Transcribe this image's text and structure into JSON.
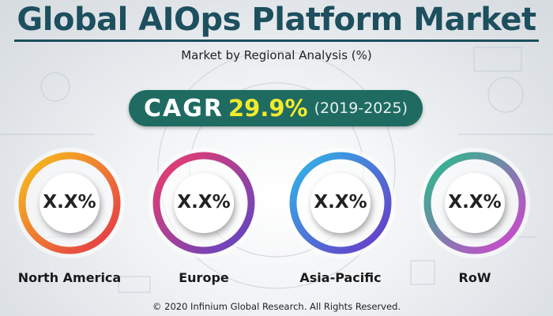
{
  "title": "Global AIOps Platform Market",
  "subtitle": "Market by Regional Analysis (%)",
  "cagr": {
    "label": "CAGR",
    "value": "29.9%",
    "period": "(2019-2025)"
  },
  "colors": {
    "title": "#1d4f5e",
    "pill": "#1f6b62",
    "cagr_value": "#f2ea2a"
  },
  "chart_data": {
    "type": "donut",
    "title": "Global AIOps Platform Market",
    "subtitle": "Market by Regional Analysis (%)",
    "regions": [
      {
        "name": "North America",
        "value": "X.X%",
        "gradient": [
          "#f7c21b",
          "#e4334a"
        ]
      },
      {
        "name": "Europe",
        "value": "X.X%",
        "gradient": [
          "#ef3b6a",
          "#5b46c7"
        ]
      },
      {
        "name": "Asia-Pacific",
        "value": "X.X%",
        "gradient": [
          "#2fb8e8",
          "#6a35c6"
        ]
      },
      {
        "name": "RoW",
        "value": "X.X%",
        "gradient": [
          "#23c08a",
          "#d83fd0"
        ]
      }
    ]
  },
  "footer": "© 2020 Infinium Global Research. All Rights Reserved."
}
